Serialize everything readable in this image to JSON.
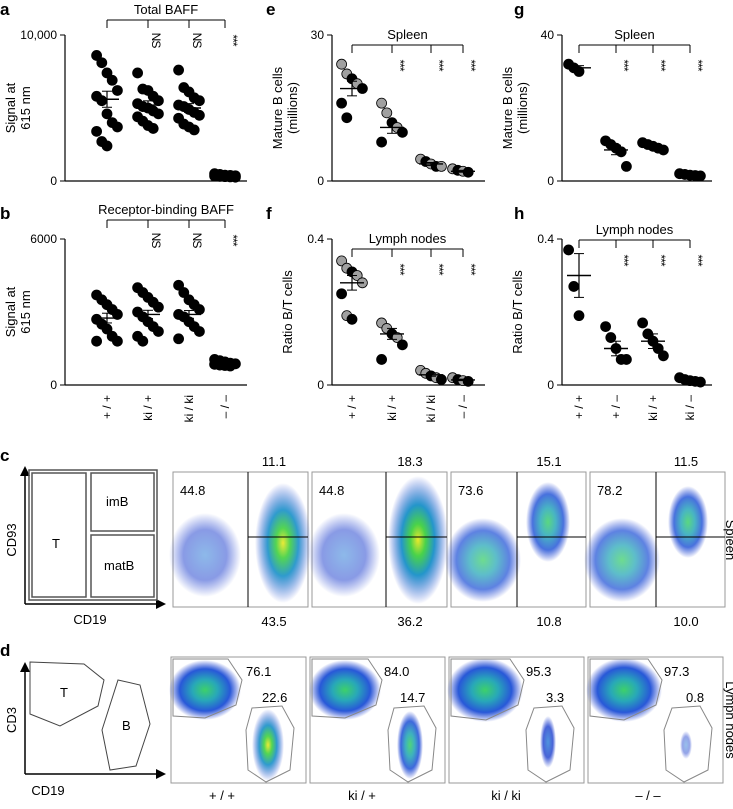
{
  "panel_letters": [
    "a",
    "b",
    "e",
    "f",
    "g",
    "h",
    "c",
    "d"
  ],
  "significance": {
    "ns": "NS",
    "stars": "***"
  },
  "colors": {
    "black": "#000000",
    "grey": "#a0a0a0",
    "gate": "#7d7d7d"
  },
  "chart_data": [
    {
      "id": "a",
      "type": "scatter",
      "title": "Total BAFF",
      "ylabel": [
        "Signal at",
        "615 nm"
      ],
      "ylim": [
        0,
        10000
      ],
      "yticks": [
        "0",
        "10,000"
      ],
      "yticks_values": [
        0,
        10000
      ],
      "categories": [
        "+ / +",
        "ki  / +",
        "ki / ki",
        "– / –"
      ],
      "show_xticks": false,
      "bracket_labels": [
        "NS",
        "NS",
        "***"
      ],
      "series": [
        {
          "color": "black",
          "points": [
            [
              8600,
              8100,
              7400,
              6900,
              6200,
              5800,
              5500,
              4600,
              4000,
              3700,
              3400,
              2700,
              2400
            ],
            [
              7400,
              6300,
              6200,
              5800,
              5500,
              5300,
              5100,
              5000,
              4800,
              4600,
              4400,
              4100,
              3800,
              3600
            ],
            [
              7600,
              6400,
              6100,
              5700,
              5500,
              5200,
              5100,
              4900,
              4700,
              4500,
              4300,
              3900,
              3700,
              3500
            ],
            [
              500,
              450,
              400,
              380,
              360,
              340,
              320,
              300,
              280,
              260
            ]
          ]
        }
      ],
      "means": [
        5600,
        5200,
        5000,
        380
      ],
      "sems": [
        550,
        290,
        300,
        40
      ]
    },
    {
      "id": "b",
      "type": "scatter",
      "title": "Receptor-binding BAFF",
      "ylabel": [
        "Signal at",
        "615 nm"
      ],
      "ylim": [
        0,
        6000
      ],
      "yticks": [
        "0",
        "6000"
      ],
      "yticks_values": [
        0,
        6000
      ],
      "categories": [
        "+ / +",
        "ki  / +",
        "ki / ki",
        "– / –"
      ],
      "show_xticks": true,
      "bracket_labels": [
        "NS",
        "NS",
        "***"
      ],
      "series": [
        {
          "color": "black",
          "points": [
            [
              3700,
              3500,
              3300,
              3100,
              2900,
              2700,
              2500,
              2300,
              2000,
              1800,
              1800
            ],
            [
              4000,
              3800,
              3600,
              3400,
              3200,
              3000,
              2800,
              2600,
              2400,
              2200,
              2000,
              1800
            ],
            [
              4100,
              3800,
              3500,
              3300,
              3100,
              2900,
              2800,
              2600,
              2400,
              2200,
              1900
            ],
            [
              1050,
              1000,
              950,
              900,
              870,
              850,
              820,
              800,
              780
            ]
          ]
        }
      ],
      "means": [
        2750,
        2900,
        2900,
        870
      ],
      "sems": [
        200,
        170,
        160,
        30
      ]
    },
    {
      "id": "e",
      "type": "scatter",
      "title": "Spleen",
      "ylabel": [
        "Mature B cells",
        "(millions)"
      ],
      "ylim": [
        0,
        30
      ],
      "yticks": [
        "0",
        "30"
      ],
      "yticks_values": [
        0,
        30
      ],
      "categories": [
        "+ / +",
        "ki  / +",
        "ki / ki",
        "– / –"
      ],
      "show_xticks": false,
      "bracket_labels": [
        "***",
        "***",
        "***"
      ],
      "series": [
        {
          "color": "mixed",
          "points": [
            [
              [
                24,
                "grey"
              ],
              [
                22,
                "grey"
              ],
              [
                21,
                "black"
              ],
              [
                20,
                "grey"
              ],
              [
                19,
                "black"
              ],
              [
                16,
                "black"
              ],
              [
                13,
                "black"
              ]
            ],
            [
              [
                16,
                "grey"
              ],
              [
                14,
                "grey"
              ],
              [
                12,
                "black"
              ],
              [
                11,
                "grey"
              ],
              [
                10,
                "black"
              ],
              [
                8,
                "black"
              ]
            ],
            [
              [
                4.5,
                "grey"
              ],
              [
                4,
                "black"
              ],
              [
                3.5,
                "grey"
              ],
              [
                3,
                "black"
              ],
              [
                3,
                "grey"
              ]
            ],
            [
              [
                2.5,
                "grey"
              ],
              [
                2.2,
                "black"
              ],
              [
                2,
                "grey"
              ],
              [
                1.8,
                "black"
              ]
            ]
          ]
        }
      ],
      "means": [
        19,
        11,
        3.5,
        2
      ],
      "sems": [
        1.5,
        1.2,
        0.3,
        0.2
      ]
    },
    {
      "id": "f",
      "type": "scatter",
      "title": "Lymph nodes",
      "ylabel": [
        "Ratio B/T cells"
      ],
      "ylim": [
        0,
        0.4
      ],
      "yticks": [
        "0",
        "0.4"
      ],
      "yticks_values": [
        0,
        0.4
      ],
      "categories": [
        "+ / +",
        "ki  / +",
        "ki / ki",
        "– / –"
      ],
      "show_xticks": true,
      "bracket_labels": [
        "***",
        "***",
        "***"
      ],
      "series": [
        {
          "color": "mixed",
          "points": [
            [
              [
                0.34,
                "grey"
              ],
              [
                0.32,
                "grey"
              ],
              [
                0.31,
                "black"
              ],
              [
                0.3,
                "grey"
              ],
              [
                0.28,
                "grey"
              ],
              [
                0.25,
                "black"
              ],
              [
                0.19,
                "grey"
              ],
              [
                0.18,
                "black"
              ]
            ],
            [
              [
                0.17,
                "grey"
              ],
              [
                0.155,
                "grey"
              ],
              [
                0.14,
                "black"
              ],
              [
                0.13,
                "grey"
              ],
              [
                0.11,
                "black"
              ],
              [
                0.07,
                "black"
              ]
            ],
            [
              [
                0.04,
                "grey"
              ],
              [
                0.032,
                "grey"
              ],
              [
                0.025,
                "black"
              ],
              [
                0.02,
                "grey"
              ],
              [
                0.015,
                "black"
              ]
            ],
            [
              [
                0.02,
                "grey"
              ],
              [
                0.015,
                "black"
              ],
              [
                0.012,
                "grey"
              ],
              [
                0.01,
                "black"
              ]
            ]
          ]
        }
      ],
      "means": [
        0.28,
        0.14,
        0.028,
        0.014
      ],
      "sems": [
        0.02,
        0.015,
        0.004,
        0.002
      ]
    },
    {
      "id": "g",
      "type": "scatter",
      "title": "Spleen",
      "ylabel": [
        "Mature B cells",
        "(millions)"
      ],
      "ylim": [
        0,
        40
      ],
      "yticks": [
        "0",
        "40"
      ],
      "yticks_values": [
        0,
        40
      ],
      "categories": [
        "+ / +",
        "+ / –",
        "ki / +",
        "ki / –"
      ],
      "show_xticks": false,
      "bracket_labels": [
        "***",
        "***",
        "***"
      ],
      "series": [
        {
          "color": "black",
          "points": [
            [
              32,
              31,
              30
            ],
            [
              11,
              10,
              9,
              8,
              4
            ],
            [
              10.5,
              10,
              9.5,
              9,
              8.5
            ],
            [
              2,
              1.8,
              1.6,
              1.5,
              1.4
            ]
          ]
        }
      ],
      "means": [
        31,
        8.5,
        9.5,
        1.6
      ],
      "sems": [
        0.6,
        1.3,
        0.4,
        0.1
      ]
    },
    {
      "id": "h",
      "type": "scatter",
      "title": "Lymph nodes",
      "ylabel": [
        "Ratio B/T cells"
      ],
      "ylim": [
        0,
        0.4
      ],
      "yticks": [
        "0",
        "0.4"
      ],
      "yticks_values": [
        0,
        0.4
      ],
      "categories": [
        "+ / +",
        "+ / –",
        "ki / +",
        "ki / –"
      ],
      "show_xticks": true,
      "bracket_labels": [
        "***",
        "***",
        "***"
      ],
      "series": [
        {
          "color": "black",
          "points": [
            [
              0.37,
              0.27,
              0.19
            ],
            [
              0.16,
              0.13,
              0.1,
              0.07,
              0.07
            ],
            [
              0.17,
              0.14,
              0.12,
              0.1,
              0.08
            ],
            [
              0.02,
              0.015,
              0.012,
              0.01,
              0.008
            ]
          ]
        }
      ],
      "means": [
        0.3,
        0.1,
        0.12,
        0.013
      ],
      "sems": [
        0.06,
        0.02,
        0.02,
        0.002
      ]
    }
  ],
  "panel_c": {
    "y_label": "CD93",
    "x_label": "CD19",
    "gates": {
      "T": "T",
      "imB": "imB",
      "matB": "matB"
    },
    "side_label": "Spleen",
    "plots": [
      {
        "t_pct": "44.8",
        "imb_pct": "11.1",
        "matb_pct": "43.5"
      },
      {
        "t_pct": "44.8",
        "imb_pct": "18.3",
        "matb_pct": "36.2"
      },
      {
        "t_pct": "73.6",
        "imb_pct": "15.1",
        "matb_pct": "10.8"
      },
      {
        "t_pct": "78.2",
        "imb_pct": "11.5",
        "matb_pct": "10.0"
      }
    ]
  },
  "panel_d": {
    "y_label": "CD3",
    "x_label": "CD19",
    "gates": {
      "T": "T",
      "B": "B"
    },
    "side_label": "Lymph nodes",
    "plots": [
      {
        "t_pct": "76.1",
        "b_pct": "22.6",
        "genotype": "+ / +"
      },
      {
        "t_pct": "84.0",
        "b_pct": "14.7",
        "genotype": "ki  / +"
      },
      {
        "t_pct": "95.3",
        "b_pct": "3.3",
        "genotype": "ki / ki"
      },
      {
        "t_pct": "97.3",
        "b_pct": "0.8",
        "genotype": "– / –"
      }
    ]
  }
}
